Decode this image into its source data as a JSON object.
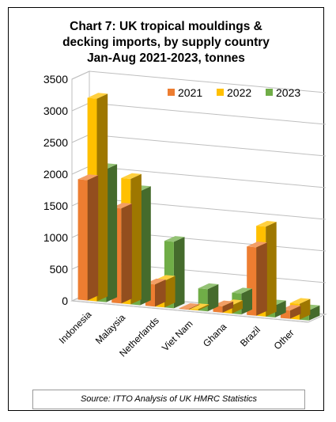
{
  "chart_data": {
    "type": "bar",
    "title_lines": [
      "Chart 7: UK tropical mouldings &",
      "decking imports, by supply country",
      "Jan-Aug 2021-2023, tonnes"
    ],
    "categories": [
      "Indonesia",
      "Malaysia",
      "Netherlands",
      "Viet Nam",
      "Ghana",
      "Brazil",
      "Other"
    ],
    "series": [
      {
        "name": "2021",
        "color": "#ED7D31",
        "values": [
          1900,
          1500,
          350,
          10,
          100,
          1080,
          130
        ]
      },
      {
        "name": "2022",
        "color": "#FFC000",
        "values": [
          3200,
          1980,
          420,
          20,
          130,
          1420,
          250
        ]
      },
      {
        "name": "2023",
        "color": "#70AD47",
        "values": [
          2100,
          1800,
          1050,
          350,
          330,
          190,
          160
        ]
      }
    ],
    "y_ticks": [
      "0",
      "500",
      "1000",
      "1500",
      "2000",
      "2500",
      "3000",
      "3500"
    ],
    "ylim": [
      0,
      3500
    ],
    "grid": true,
    "legend_position": "top-right",
    "projection": "3d-clustered-column",
    "source": "Source: ITTO Analysis of UK HMRC Statistics"
  }
}
